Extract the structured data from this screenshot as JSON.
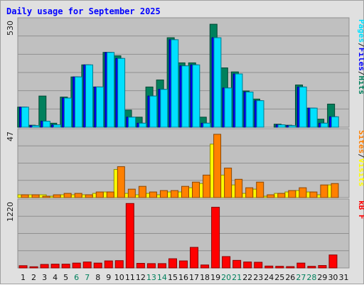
{
  "chart_data": {
    "type": "bar",
    "title": "Daily usage for September 2025",
    "categories": [
      "1",
      "2",
      "3",
      "4",
      "5",
      "6",
      "7",
      "8",
      "9",
      "10",
      "11",
      "12",
      "13",
      "14",
      "15",
      "16",
      "17",
      "18",
      "19",
      "20",
      "21",
      "22",
      "23",
      "24",
      "25",
      "26",
      "27",
      "28",
      "29",
      "30",
      "31"
    ],
    "weekend_days": [
      "6",
      "7",
      "13",
      "14",
      "20",
      "21",
      "27",
      "28"
    ],
    "panels": [
      {
        "name": "hits-files-pages",
        "ymax_label": "530",
        "ylim": [
          0,
          530
        ],
        "legend": [
          "Pages",
          "/",
          "Files",
          "/",
          "Hits"
        ],
        "legend_colors": [
          "#00e0ff",
          "#202020",
          "#0000ff",
          "#202020",
          "#00805c"
        ],
        "series": [
          {
            "name": "Hits",
            "color": "#00805c",
            "values": [
              100,
              10,
              155,
              20,
              150,
              250,
              310,
              200,
              372,
              355,
              85,
              50,
              200,
              235,
              445,
              320,
              320,
              50,
              512,
              295,
              275,
              180,
              140,
              0,
              15,
              10,
              210,
              95,
              40,
              115,
              0
            ]
          },
          {
            "name": "Files",
            "color": "#0000ff",
            "values": [
              100,
              8,
              30,
              12,
              145,
              250,
              310,
              200,
              372,
              342,
              50,
              20,
              155,
              188,
              435,
              305,
              310,
              20,
              445,
              195,
              265,
              175,
              132,
              0,
              12,
              8,
              200,
              95,
              20,
              52,
              0
            ]
          },
          {
            "name": "Pages",
            "color": "#00e0ff",
            "values": [
              100,
              8,
              30,
              12,
              145,
              250,
              310,
              200,
              372,
              342,
              50,
              20,
              155,
              188,
              435,
              305,
              310,
              20,
              445,
              195,
              265,
              175,
              132,
              0,
              12,
              8,
              200,
              95,
              20,
              52,
              0
            ]
          }
        ]
      },
      {
        "name": "visits-sites",
        "ymax_label": "47",
        "ylim": [
          0,
          47
        ],
        "legend": [
          "Sites",
          "/",
          "Visits"
        ],
        "legend_colors": [
          "#ff8000",
          "#202020",
          "#ffff00"
        ],
        "series": [
          {
            "name": "Visits",
            "color": "#ffff00",
            "values": [
              2,
              2,
              2,
              1,
              2,
              2,
              2,
              3,
              4,
              20,
              3,
              2,
              3,
              2,
              4,
              4,
              7,
              10,
              38,
              16,
              9,
              3,
              6,
              1,
              3,
              4,
              5,
              4,
              2,
              9,
              0
            ]
          },
          {
            "name": "Sites",
            "color": "#ff8000",
            "values": [
              2,
              2,
              1,
              2,
              3,
              3,
              2,
              4,
              4,
              22,
              6,
              8,
              4,
              5,
              5,
              8,
              11,
              16,
              45,
              21,
              13,
              7,
              11,
              2,
              3,
              5,
              7,
              4,
              9,
              10,
              0
            ]
          }
        ]
      },
      {
        "name": "kb-f",
        "ymax_label": "1220",
        "ylim": [
          0,
          1220
        ],
        "legend": [
          "kB F"
        ],
        "legend_colors": [
          "#ff0000"
        ],
        "series": [
          {
            "name": "kB F",
            "color": "#ff0000",
            "values": [
              42,
              22,
              65,
              70,
              70,
              90,
              110,
              90,
              130,
              135,
              1190,
              85,
              80,
              80,
              170,
              130,
              380,
              55,
              1120,
              210,
              140,
              110,
              105,
              35,
              30,
              25,
              90,
              30,
              45,
              240,
              0
            ]
          }
        ]
      }
    ]
  }
}
